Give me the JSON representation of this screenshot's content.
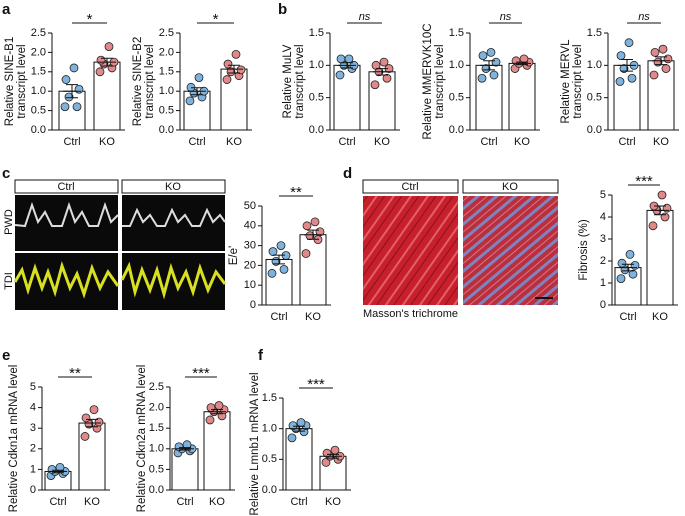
{
  "panels": [
    "a",
    "b",
    "c",
    "d",
    "e",
    "f"
  ],
  "images": {
    "c_columns": [
      "Ctrl",
      "KO"
    ],
    "c_rows": [
      "PWD",
      "TDI"
    ],
    "d_columns": [
      "Ctrl",
      "KO"
    ],
    "d_caption": "Masson's trichrome"
  },
  "chart_data": [
    {
      "type": "bar",
      "ylabel": [
        "Relative SINE-B1",
        "transcript level"
      ],
      "categories": [
        "Ctrl",
        "KO"
      ],
      "values": [
        1.0,
        1.75
      ],
      "errors": [
        0.17,
        0.1
      ],
      "points": [
        [
          0.6,
          0.6,
          0.85,
          1.05,
          1.3,
          1.6
        ],
        [
          1.5,
          1.6,
          1.7,
          1.75,
          1.8,
          2.15
        ]
      ],
      "colors": [
        "#7fb2dc",
        "#e0888a"
      ],
      "significance": "*",
      "ylim": [
        0,
        2.5
      ],
      "yticks": [
        {
          "value": 0,
          "label": "0.0"
        },
        {
          "value": 0.5,
          "label": "0.5"
        },
        {
          "value": 1,
          "label": "1.0"
        },
        {
          "value": 1.5,
          "label": "1.5"
        },
        {
          "value": 2,
          "label": "2.0"
        },
        {
          "value": 2.5,
          "label": "2.5"
        }
      ]
    },
    {
      "type": "bar",
      "ylabel": [
        "Relative SINE-B2",
        "transcript level"
      ],
      "categories": [
        "Ctrl",
        "KO"
      ],
      "values": [
        1.0,
        1.57
      ],
      "errors": [
        0.09,
        0.1
      ],
      "points": [
        [
          0.75,
          0.85,
          0.95,
          1.0,
          1.1,
          1.35
        ],
        [
          1.3,
          1.4,
          1.5,
          1.55,
          1.7,
          1.95
        ]
      ],
      "colors": [
        "#7fb2dc",
        "#e0888a"
      ],
      "significance": "*",
      "ylim": [
        0,
        2.5
      ],
      "yticks": [
        {
          "value": 0,
          "label": "0.0"
        },
        {
          "value": 0.5,
          "label": "0.5"
        },
        {
          "value": 1,
          "label": "1.0"
        },
        {
          "value": 1.5,
          "label": "1.5"
        },
        {
          "value": 2,
          "label": "2.0"
        },
        {
          "value": 2.5,
          "label": "2.5"
        }
      ]
    },
    {
      "type": "bar",
      "ylabel": [
        "Relative MuLV",
        "transcript level"
      ],
      "categories": [
        "Ctrl",
        "KO"
      ],
      "values": [
        1.0,
        0.9
      ],
      "errors": [
        0.04,
        0.05
      ],
      "points": [
        [
          0.85,
          0.95,
          1.0,
          1.0,
          1.1,
          1.1
        ],
        [
          0.7,
          0.8,
          0.9,
          0.95,
          1.0,
          1.05
        ]
      ],
      "colors": [
        "#7fb2dc",
        "#e0888a"
      ],
      "significance": "ns",
      "ylim": [
        0,
        1.5
      ],
      "yticks": [
        {
          "value": 0,
          "label": "0.0"
        },
        {
          "value": 0.5,
          "label": "0.5"
        },
        {
          "value": 1,
          "label": "1.0"
        },
        {
          "value": 1.5,
          "label": "1.5"
        }
      ]
    },
    {
      "type": "bar",
      "ylabel": [
        "Relative MMERVK10C",
        "transcript level"
      ],
      "categories": [
        "Ctrl",
        "KO"
      ],
      "values": [
        1.0,
        1.03
      ],
      "errors": [
        0.07,
        0.02
      ],
      "points": [
        [
          0.8,
          0.85,
          0.95,
          1.05,
          1.15,
          1.2
        ],
        [
          0.95,
          1.0,
          1.03,
          1.05,
          1.07,
          1.1
        ]
      ],
      "colors": [
        "#7fb2dc",
        "#e0888a"
      ],
      "significance": "ns",
      "ylim": [
        0,
        1.5
      ],
      "yticks": [
        {
          "value": 0,
          "label": "0.0"
        },
        {
          "value": 0.5,
          "label": "0.5"
        },
        {
          "value": 1,
          "label": "1.0"
        },
        {
          "value": 1.5,
          "label": "1.5"
        }
      ]
    },
    {
      "type": "bar",
      "ylabel": [
        "Relative MERVL",
        "transcript level"
      ],
      "categories": [
        "Ctrl",
        "KO"
      ],
      "values": [
        1.0,
        1.07
      ],
      "errors": [
        0.09,
        0.06
      ],
      "points": [
        [
          0.75,
          0.8,
          0.95,
          1.0,
          1.15,
          1.35
        ],
        [
          0.85,
          0.95,
          1.05,
          1.1,
          1.2,
          1.25
        ]
      ],
      "colors": [
        "#7fb2dc",
        "#e0888a"
      ],
      "significance": "ns",
      "ylim": [
        0,
        1.5
      ],
      "yticks": [
        {
          "value": 0,
          "label": "0.0"
        },
        {
          "value": 0.5,
          "label": "0.5"
        },
        {
          "value": 1,
          "label": "1.0"
        },
        {
          "value": 1.5,
          "label": "1.5"
        }
      ]
    },
    {
      "type": "bar",
      "ylabel": [
        "E/e'"
      ],
      "categories": [
        "Ctrl",
        "KO"
      ],
      "values": [
        23,
        35.5
      ],
      "errors": [
        2.2,
        2.3
      ],
      "points": [
        [
          16,
          18,
          22,
          25,
          27,
          30
        ],
        [
          26,
          33,
          35,
          37,
          40,
          42
        ]
      ],
      "colors": [
        "#7fb2dc",
        "#e0888a"
      ],
      "significance": "**",
      "ylim": [
        0,
        50
      ],
      "yticks": [
        0,
        10,
        20,
        30,
        40,
        50
      ]
    },
    {
      "type": "bar",
      "ylabel": [
        "Fibrosis (%)"
      ],
      "categories": [
        "Ctrl",
        "KO"
      ],
      "values": [
        1.7,
        4.3
      ],
      "errors": [
        0.15,
        0.2
      ],
      "points": [
        [
          1.2,
          1.4,
          1.6,
          1.8,
          1.9,
          2.3
        ],
        [
          3.6,
          4.0,
          4.3,
          4.4,
          4.5,
          5.0
        ]
      ],
      "colors": [
        "#7fb2dc",
        "#e0888a"
      ],
      "significance": "***",
      "ylim": [
        0,
        5
      ],
      "yticks": [
        0,
        1,
        2,
        3,
        4,
        5
      ]
    },
    {
      "type": "bar",
      "ylabel": [
        "Relative Cdkn1a mRNA level"
      ],
      "categories": [
        "Ctrl",
        "KO"
      ],
      "values": [
        0.9,
        3.25
      ],
      "errors": [
        0.06,
        0.18
      ],
      "points": [
        [
          0.7,
          0.8,
          0.9,
          0.9,
          1.0,
          1.1
        ],
        [
          2.6,
          3.0,
          3.2,
          3.3,
          3.5,
          3.9
        ]
      ],
      "colors": [
        "#7fb2dc",
        "#e0888a"
      ],
      "significance": "**",
      "ylim": [
        0,
        5
      ],
      "yticks": [
        0,
        1,
        2,
        3,
        4,
        5
      ]
    },
    {
      "type": "bar",
      "ylabel": [
        "Relative Cdkn2a mRNA level"
      ],
      "categories": [
        "Ctrl",
        "KO"
      ],
      "values": [
        1.0,
        1.9
      ],
      "errors": [
        0.03,
        0.05
      ],
      "points": [
        [
          0.9,
          0.95,
          1.0,
          1.0,
          1.05,
          1.1
        ],
        [
          1.7,
          1.8,
          1.9,
          1.95,
          2.0,
          2.05
        ]
      ],
      "colors": [
        "#7fb2dc",
        "#e0888a"
      ],
      "significance": "***",
      "ylim": [
        0,
        2.5
      ],
      "yticks": [
        {
          "value": 0,
          "label": "0.0"
        },
        {
          "value": 0.5,
          "label": "0.5"
        },
        {
          "value": 1,
          "label": "1.0"
        },
        {
          "value": 1.5,
          "label": "1.5"
        },
        {
          "value": 2,
          "label": "2.0"
        },
        {
          "value": 2.5,
          "label": "2.5"
        }
      ]
    },
    {
      "type": "bar",
      "ylabel": [
        "Relative Lmnb1 mRNA level"
      ],
      "categories": [
        "Ctrl",
        "KO"
      ],
      "values": [
        1.0,
        0.55
      ],
      "errors": [
        0.04,
        0.03
      ],
      "points": [
        [
          0.85,
          0.95,
          1.0,
          1.05,
          1.05,
          1.1
        ],
        [
          0.45,
          0.5,
          0.55,
          0.55,
          0.6,
          0.65
        ]
      ],
      "colors": [
        "#7fb2dc",
        "#e0888a"
      ],
      "significance": "***",
      "ylim": [
        0,
        1.5
      ],
      "yticks": [
        {
          "value": 0,
          "label": "0.0"
        },
        {
          "value": 0.5,
          "label": "0.5"
        },
        {
          "value": 1,
          "label": "1.0"
        },
        {
          "value": 1.5,
          "label": "1.5"
        }
      ]
    }
  ]
}
